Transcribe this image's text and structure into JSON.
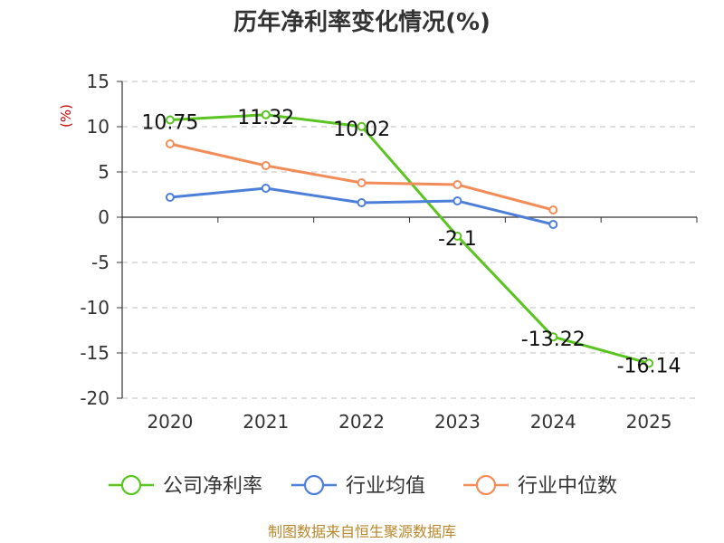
{
  "chart_data": {
    "type": "line",
    "title": "历年净利率变化情况(%)",
    "unit_label": "(%)",
    "categories": [
      "2020",
      "2021",
      "2022",
      "2023",
      "2024",
      "2025"
    ],
    "ylim": [
      -20,
      15
    ],
    "yticks": [
      15,
      10,
      5,
      0,
      -5,
      -10,
      -15,
      -20
    ],
    "ytick_labels": [
      "15",
      "10",
      "5",
      "0",
      "-5",
      "-10",
      "-15",
      "-20"
    ],
    "grid": true,
    "legend_position": "bottom",
    "series": [
      {
        "name": "公司净利率",
        "color": "#5ac421",
        "values": [
          10.75,
          11.32,
          10.02,
          -2.1,
          -13.22,
          -16.14
        ],
        "labels": [
          "10.75",
          "11.32",
          "10.02",
          "-2.1",
          "-13.22",
          "-16.14"
        ]
      },
      {
        "name": "行业均值",
        "color": "#4d7fd8",
        "values": [
          2.2,
          3.2,
          1.6,
          1.8,
          -0.8,
          null
        ]
      },
      {
        "name": "行业中位数",
        "color": "#f28d5a",
        "values": [
          8.1,
          5.7,
          3.8,
          3.6,
          0.8,
          null
        ]
      }
    ]
  },
  "footer": "制图数据来自恒生聚源数据库"
}
